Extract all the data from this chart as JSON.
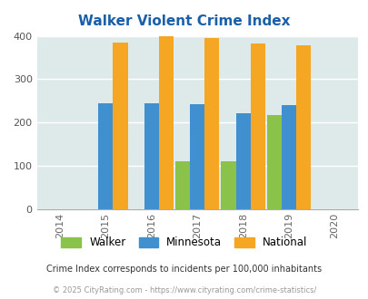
{
  "title": "Walker Violent Crime Index",
  "years": [
    2014,
    2015,
    2016,
    2017,
    2018,
    2019,
    2020
  ],
  "data_years": [
    2015,
    2016,
    2017,
    2018,
    2019
  ],
  "walker": [
    0,
    0,
    110,
    110,
    218
  ],
  "minnesota": [
    245,
    245,
    243,
    222,
    240
  ],
  "national": [
    385,
    400,
    394,
    382,
    379
  ],
  "walker_color": "#8bc34a",
  "minnesota_color": "#4090d0",
  "national_color": "#f5a623",
  "bg_color": "#deeaea",
  "ylim": [
    0,
    400
  ],
  "yticks": [
    0,
    100,
    200,
    300,
    400
  ],
  "bar_width": 0.32,
  "legend_labels": [
    "Walker",
    "Minnesota",
    "National"
  ],
  "footnote1": "Crime Index corresponds to incidents per 100,000 inhabitants",
  "footnote2": "© 2025 CityRating.com - https://www.cityrating.com/crime-statistics/",
  "title_color": "#1a5fa8",
  "footnote1_color": "#333333",
  "footnote2_color": "#999999"
}
